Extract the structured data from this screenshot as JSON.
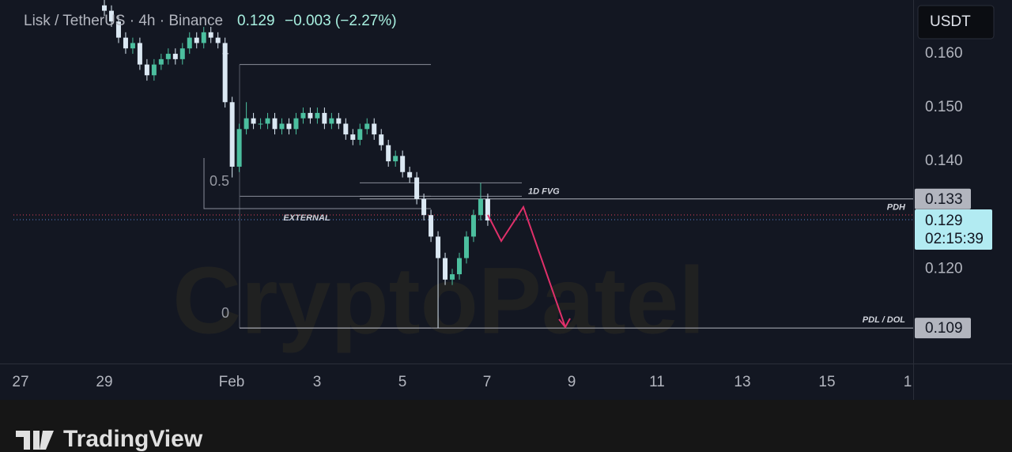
{
  "chart_data": {
    "type": "candlestick",
    "symbol": "Lisk / TetherUS · 4h · Binance",
    "last": "0.129",
    "change": "−0.003 (−2.27%)",
    "currency": "USDT",
    "watermark": "CryptoPatel",
    "brand": "TradingView",
    "up_color": "#4cbf9f",
    "down_color": "#dbe8f3",
    "open": [
      0.169,
      0.168,
      0.166,
      0.163,
      0.161,
      0.162,
      0.158,
      0.156,
      0.158,
      0.159,
      0.16,
      0.159,
      0.161,
      0.163,
      0.162,
      0.164,
      0.163,
      0.162,
      0.151,
      0.139,
      0.146,
      0.148,
      0.147,
      0.147,
      0.148,
      0.146,
      0.147,
      0.146,
      0.148,
      0.149,
      0.148,
      0.149,
      0.147,
      0.148,
      0.147,
      0.145,
      0.144,
      0.146,
      0.147,
      0.145,
      0.143,
      0.14,
      0.141,
      0.138,
      0.137,
      0.133,
      0.13,
      0.126,
      0.122,
      0.118,
      0.119,
      0.122,
      0.126,
      0.13,
      0.133
    ],
    "high": [
      0.17,
      0.169,
      0.167,
      0.164,
      0.163,
      0.163,
      0.159,
      0.159,
      0.16,
      0.161,
      0.161,
      0.162,
      0.164,
      0.164,
      0.165,
      0.165,
      0.164,
      0.163,
      0.152,
      0.147,
      0.151,
      0.149,
      0.148,
      0.149,
      0.149,
      0.148,
      0.148,
      0.149,
      0.15,
      0.15,
      0.15,
      0.15,
      0.149,
      0.149,
      0.148,
      0.146,
      0.147,
      0.148,
      0.148,
      0.146,
      0.144,
      0.142,
      0.142,
      0.139,
      0.138,
      0.134,
      0.131,
      0.127,
      0.123,
      0.12,
      0.123,
      0.127,
      0.131,
      0.136,
      0.134
    ],
    "low": [
      0.167,
      0.165,
      0.162,
      0.16,
      0.16,
      0.157,
      0.155,
      0.155,
      0.157,
      0.158,
      0.158,
      0.158,
      0.16,
      0.161,
      0.161,
      0.162,
      0.161,
      0.15,
      0.137,
      0.138,
      0.145,
      0.146,
      0.146,
      0.146,
      0.145,
      0.145,
      0.145,
      0.145,
      0.147,
      0.147,
      0.147,
      0.146,
      0.146,
      0.146,
      0.144,
      0.143,
      0.143,
      0.145,
      0.144,
      0.142,
      0.139,
      0.139,
      0.137,
      0.136,
      0.132,
      0.129,
      0.125,
      0.109,
      0.117,
      0.117,
      0.118,
      0.121,
      0.125,
      0.129,
      0.128
    ],
    "close": [
      0.168,
      0.166,
      0.163,
      0.161,
      0.162,
      0.158,
      0.156,
      0.158,
      0.159,
      0.16,
      0.159,
      0.161,
      0.163,
      0.162,
      0.164,
      0.163,
      0.162,
      0.151,
      0.139,
      0.146,
      0.148,
      0.147,
      0.147,
      0.148,
      0.146,
      0.147,
      0.146,
      0.148,
      0.149,
      0.148,
      0.149,
      0.147,
      0.148,
      0.147,
      0.145,
      0.144,
      0.146,
      0.147,
      0.145,
      0.143,
      0.14,
      0.141,
      0.138,
      0.137,
      0.133,
      0.13,
      0.126,
      0.122,
      0.118,
      0.119,
      0.122,
      0.126,
      0.13,
      0.133,
      0.129
    ],
    "xtick_labels": [
      "27",
      "29",
      "Feb",
      "3",
      "5",
      "7",
      "9",
      "11",
      "13",
      "15",
      "1"
    ],
    "ylim": [
      0.1024,
      0.17
    ],
    "yticks": [
      {
        "value": 0.16,
        "label": "0.160"
      },
      {
        "value": 0.15,
        "label": "0.150"
      },
      {
        "value": 0.14,
        "label": "0.140"
      },
      {
        "value": 0.12,
        "label": "0.120"
      }
    ],
    "price_labels": [
      0.133,
      0.109
    ],
    "last_price": 0.129,
    "countdown": "02:15:39",
    "fib": [
      {
        "ratio": 1,
        "price": 0.158
      },
      {
        "ratio": 0.5,
        "price": 0.1335
      },
      {
        "ratio": 0,
        "price": 0.109
      }
    ],
    "fvg": {
      "label": "1D FVG",
      "top": 0.136,
      "bottom": 0.1335
    },
    "pdh": {
      "label": "PDH",
      "price": 0.133
    },
    "pdl": {
      "label": "PDL / DOL",
      "price": 0.109
    },
    "external": {
      "label": "EXTERNAL",
      "price": 0.1312
    }
  }
}
